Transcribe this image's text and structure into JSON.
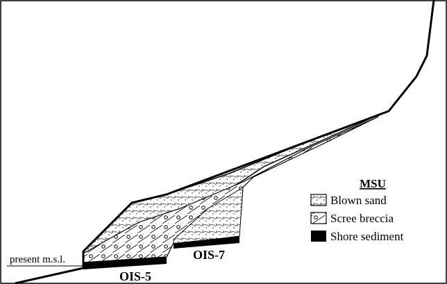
{
  "legend": {
    "title": "MSU",
    "items": [
      "Blown sand",
      "Scree breccia",
      "Shore sediment"
    ]
  },
  "labels": {
    "sea_level": "present m.s.l.",
    "ois5": "OIS-5",
    "ois7": "OIS-7"
  }
}
